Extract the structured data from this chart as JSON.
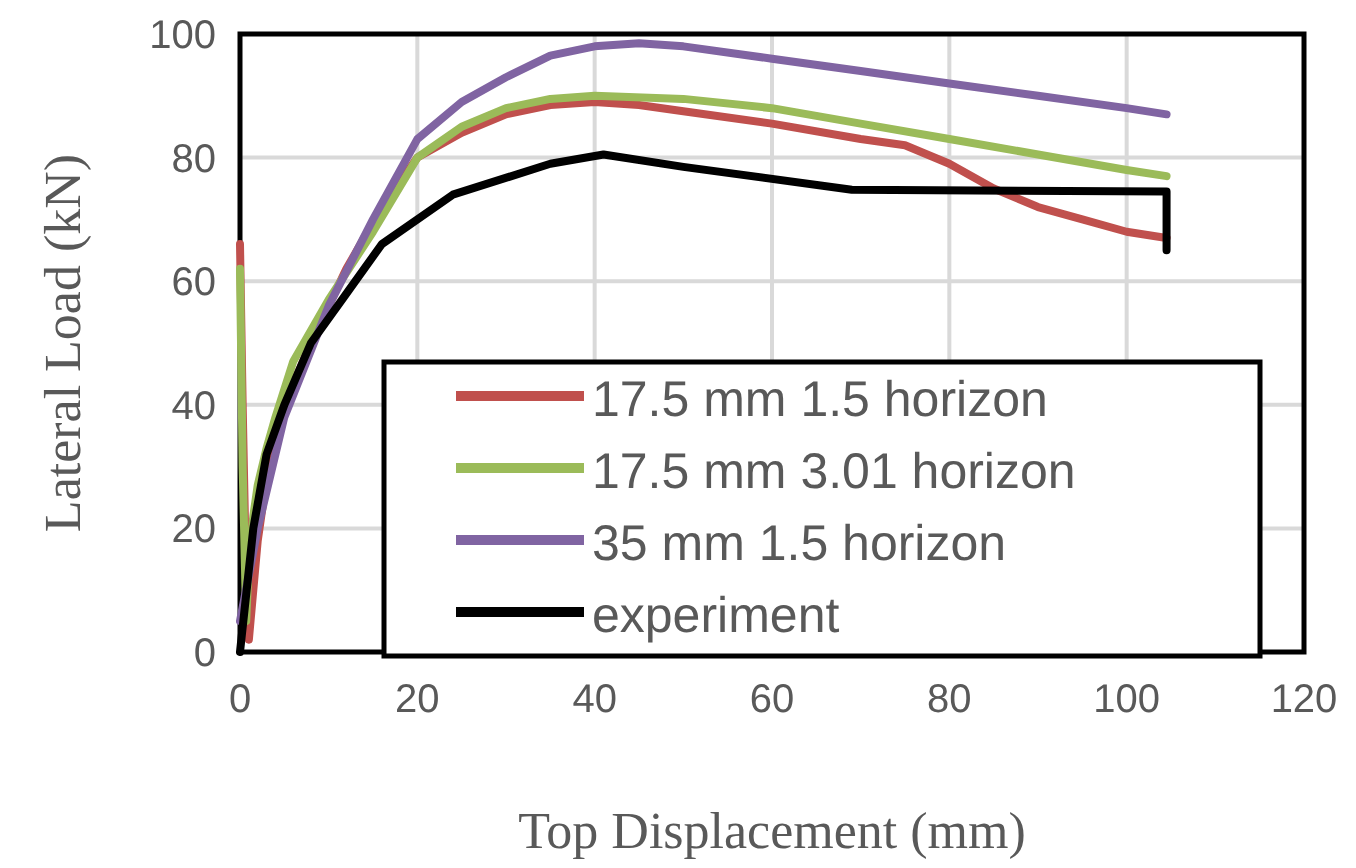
{
  "chart_data": {
    "type": "line",
    "xlabel": "Top Displacement (mm)",
    "ylabel": "Lateral Load (kN)",
    "xlim": [
      0,
      120
    ],
    "xticks": [
      0,
      20,
      40,
      60,
      80,
      100,
      120
    ],
    "ylim": [
      0,
      100
    ],
    "yticks": [
      0,
      20,
      40,
      60,
      80,
      100
    ],
    "grid": true,
    "legend": "bottom right",
    "marker": "none",
    "line_style": "solid",
    "series": [
      {
        "name": "17.5 mm 1.5 horizon",
        "color": "#c0504d",
        "x": [
          0,
          0.3,
          0.6,
          1,
          1.5,
          2,
          3,
          5,
          8,
          12,
          16,
          20,
          25,
          30,
          35,
          40,
          45,
          50,
          60,
          70,
          75,
          80,
          85,
          90,
          95,
          100,
          104.5
        ],
        "values": [
          66,
          40,
          18,
          2,
          10,
          18,
          28,
          40,
          50,
          62,
          72,
          80,
          84,
          87,
          88.5,
          89,
          88.5,
          87.5,
          85.5,
          83,
          82,
          79,
          75,
          72,
          70,
          68,
          67
        ]
      },
      {
        "name": "17.5 mm 3.01 horizon",
        "color": "#9bbb59",
        "x": [
          0,
          0.3,
          0.7,
          1,
          1.5,
          2,
          3,
          4,
          6,
          10,
          15,
          20,
          25,
          30,
          35,
          40,
          50,
          60,
          70,
          80,
          90,
          100,
          104.5
        ],
        "values": [
          62,
          30,
          5,
          15,
          22,
          27,
          33,
          38,
          47,
          57,
          68,
          80,
          85,
          88,
          89.5,
          90,
          89.5,
          88,
          85.5,
          83,
          80.5,
          78,
          77
        ]
      },
      {
        "name": "35 mm 1.5 horizon",
        "color": "#8064a2",
        "x": [
          0,
          2,
          5,
          10,
          15,
          20,
          25,
          30,
          35,
          40,
          45,
          50,
          60,
          70,
          80,
          90,
          100,
          104.5
        ],
        "values": [
          5,
          20,
          38,
          56,
          70,
          83,
          89,
          93,
          96.5,
          98,
          98.5,
          98,
          96,
          94,
          92,
          90,
          88,
          87
        ]
      },
      {
        "name": "experiment",
        "color": "#000000",
        "x": [
          0,
          1.5,
          3,
          5,
          8,
          12,
          16,
          24,
          35,
          41,
          50,
          69,
          104.5,
          104.5
        ],
        "values": [
          0,
          20,
          32,
          40,
          50,
          58,
          66,
          74,
          79,
          80.5,
          78.5,
          74.8,
          74.5,
          65
        ]
      }
    ]
  }
}
